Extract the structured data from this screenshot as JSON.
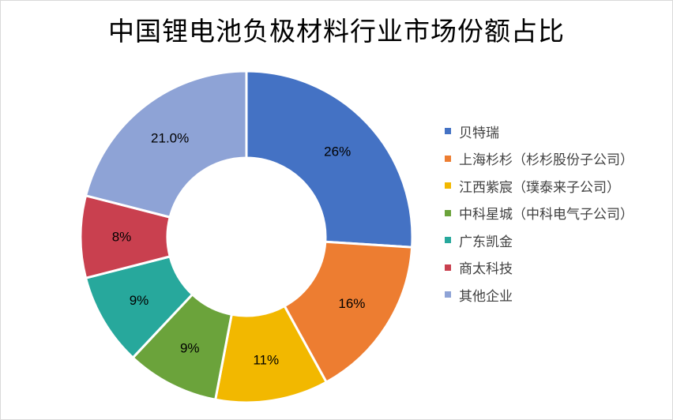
{
  "chart_data": {
    "type": "pie",
    "donut": true,
    "title": "中国锂电池负极材料行业市场份额占比",
    "legend_position": "right",
    "slices": [
      {
        "label": "贝特瑞",
        "value": 26,
        "display": "26%",
        "color": "#4472C4",
        "label_color": "#000000"
      },
      {
        "label": "上海杉杉（杉杉股份子公司）",
        "value": 16,
        "display": "16%",
        "color": "#ED7D31",
        "label_color": "#000000"
      },
      {
        "label": "江西紫宸（璞泰来子公司）",
        "value": 11,
        "display": "11%",
        "color": "#F2B800",
        "label_color": "#000000"
      },
      {
        "label": "中科星城（中科电气子公司）",
        "value": 9,
        "display": "9%",
        "color": "#6BA33B",
        "label_color": "#000000"
      },
      {
        "label": "广东凯金",
        "value": 9,
        "display": "9%",
        "color": "#27A89C",
        "label_color": "#000000"
      },
      {
        "label": "商太科技",
        "value": 8,
        "display": "8%",
        "color": "#C9404F",
        "label_color": "#000000"
      },
      {
        "label": "其他企业",
        "value": 21,
        "display": "21.0%",
        "color": "#8EA3D6",
        "label_color": "#000000"
      }
    ]
  }
}
